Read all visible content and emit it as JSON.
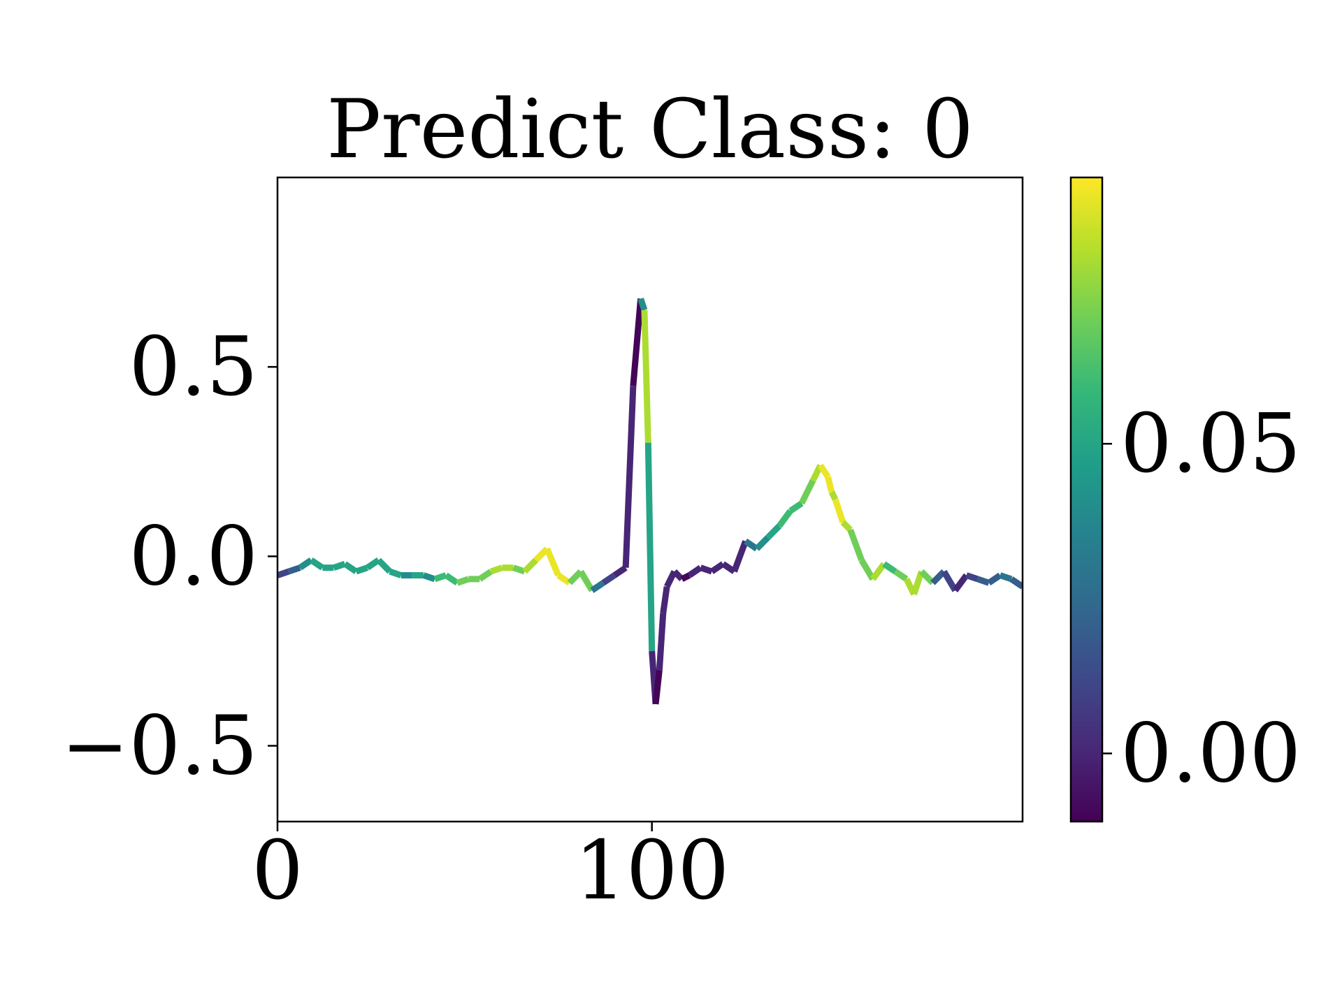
{
  "chart_data": {
    "type": "line",
    "title": "Predict Class: 0",
    "xlabel": "",
    "ylabel": "",
    "xlim": [
      0,
      199
    ],
    "ylim": [
      -0.7,
      1.0
    ],
    "xticks": [
      0,
      100
    ],
    "xtick_labels": [
      "0",
      "100"
    ],
    "yticks": [
      -0.5,
      0.0,
      0.5
    ],
    "ytick_labels": [
      "−0.5",
      "0.0",
      "0.5"
    ],
    "grid": false,
    "legend": "none",
    "line_color_mode": "colored by attribution value (viridis colormap)",
    "colorbar": {
      "colormap": "viridis",
      "range": [
        -0.011,
        0.093
      ],
      "ticks": [
        0.0,
        0.05
      ],
      "tick_labels": [
        "0.00",
        "0.05"
      ],
      "colors": [
        "#440154",
        "#482878",
        "#3e4989",
        "#31688e",
        "#26828e",
        "#1f9e89",
        "#35b779",
        "#6ece58",
        "#b5de2b",
        "#fde725"
      ]
    },
    "x": [
      0,
      3,
      6,
      9,
      12,
      15,
      18,
      21,
      24,
      27,
      30,
      33,
      36,
      39,
      42,
      45,
      48,
      51,
      54,
      57,
      60,
      63,
      66,
      69,
      72,
      75,
      78,
      81,
      84,
      87,
      90,
      93,
      95,
      97,
      98,
      99,
      100,
      101,
      102,
      103,
      104,
      106,
      108,
      110,
      113,
      116,
      119,
      122,
      125,
      128,
      131,
      134,
      137,
      140,
      143,
      145,
      147,
      148,
      149,
      151,
      153,
      156,
      159,
      162,
      165,
      168,
      170,
      172,
      175,
      178,
      181,
      184,
      187,
      190,
      193,
      196,
      199
    ],
    "values": [
      -0.05,
      -0.04,
      -0.03,
      -0.01,
      -0.03,
      -0.03,
      -0.02,
      -0.04,
      -0.03,
      -0.01,
      -0.04,
      -0.05,
      -0.05,
      -0.05,
      -0.06,
      -0.05,
      -0.07,
      -0.06,
      -0.06,
      -0.04,
      -0.03,
      -0.03,
      -0.04,
      -0.01,
      0.02,
      -0.05,
      -0.07,
      -0.04,
      -0.09,
      -0.07,
      -0.05,
      -0.03,
      0.45,
      0.68,
      0.65,
      0.3,
      -0.25,
      -0.39,
      -0.3,
      -0.15,
      -0.08,
      -0.04,
      -0.06,
      -0.05,
      -0.03,
      -0.04,
      -0.02,
      -0.04,
      0.04,
      0.02,
      0.05,
      0.08,
      0.12,
      0.14,
      0.2,
      0.24,
      0.21,
      0.17,
      0.15,
      0.09,
      0.07,
      -0.01,
      -0.06,
      -0.02,
      -0.04,
      -0.06,
      -0.1,
      -0.04,
      -0.07,
      -0.04,
      -0.09,
      -0.05,
      -0.06,
      -0.07,
      -0.05,
      -0.06,
      -0.08
    ],
    "colors": [
      0.01,
      0.02,
      0.04,
      0.05,
      0.05,
      0.05,
      0.05,
      0.05,
      0.05,
      0.05,
      0.05,
      0.04,
      0.05,
      0.04,
      0.06,
      0.06,
      0.07,
      0.07,
      0.07,
      0.08,
      0.08,
      0.07,
      0.08,
      0.09,
      0.09,
      0.09,
      0.07,
      0.07,
      0.03,
      0.01,
      0.0,
      0.0,
      -0.01,
      0.04,
      0.08,
      0.05,
      0.0,
      -0.01,
      0.0,
      0.0,
      0.0,
      0.0,
      -0.01,
      0.0,
      0.0,
      0.0,
      0.0,
      0.0,
      0.03,
      0.04,
      0.05,
      0.06,
      0.06,
      0.07,
      0.08,
      0.09,
      0.09,
      0.08,
      0.09,
      0.08,
      0.07,
      0.07,
      0.08,
      0.06,
      0.07,
      0.08,
      0.08,
      0.07,
      0.02,
      0.01,
      0.0,
      0.01,
      0.02,
      0.02,
      0.03,
      0.02,
      0.02
    ]
  }
}
